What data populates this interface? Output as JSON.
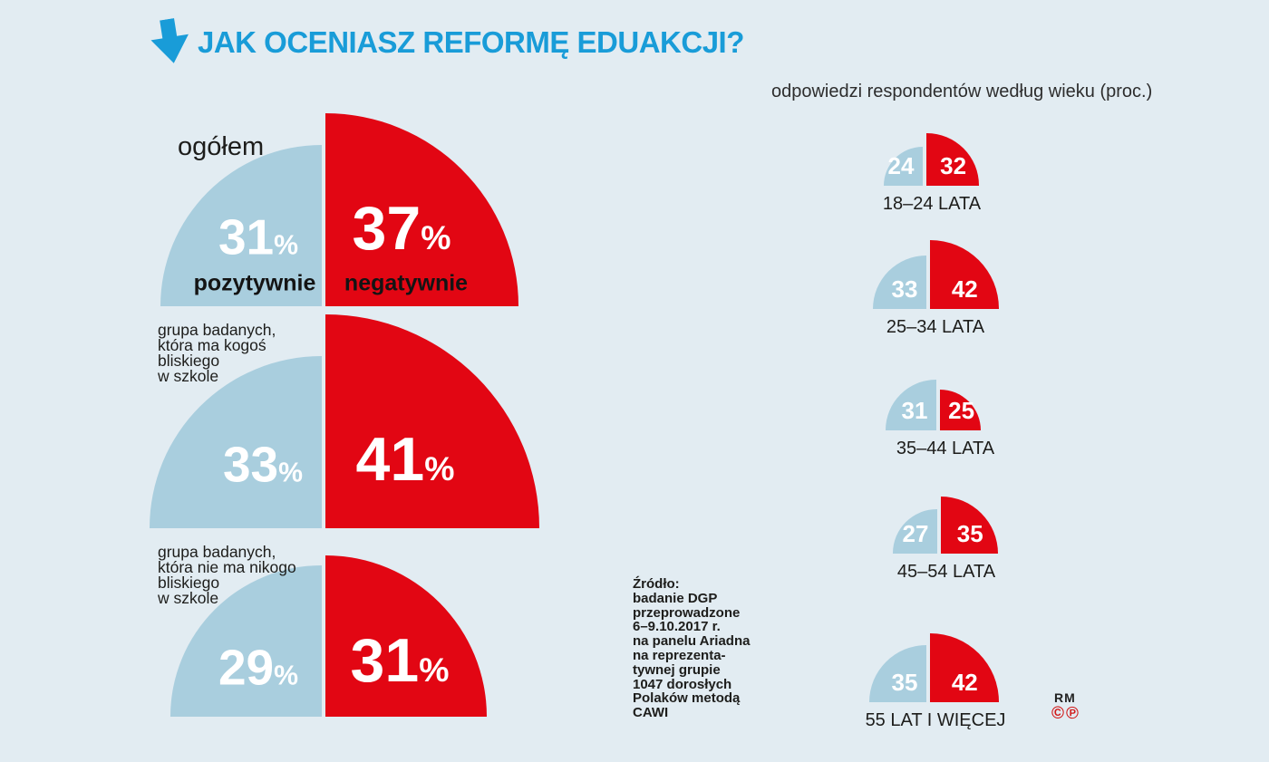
{
  "title": "JAK OCENIASZ REFORMĘ EDUAKCJI?",
  "subtitle": "odpowiedzi respondentów według wieku (proc.)",
  "legend": {
    "positive": "pozytywnie",
    "negative": "negatywnie"
  },
  "groups": [
    {
      "label_lines": [
        "ogółem"
      ],
      "positive": 31,
      "negative": 37
    },
    {
      "label_lines": [
        "grupa badanych,",
        "która ma kogoś",
        "bliskiego",
        "w szkole"
      ],
      "positive": 33,
      "negative": 41
    },
    {
      "label_lines": [
        "grupa badanych,",
        "która nie ma nikogo",
        "bliskiego",
        "w szkole"
      ],
      "positive": 29,
      "negative": 31
    }
  ],
  "ages": [
    {
      "label": "18–24 LATA",
      "positive": 24,
      "negative": 32
    },
    {
      "label": "25–34 LATA",
      "positive": 33,
      "negative": 42
    },
    {
      "label": "35–44 LATA",
      "positive": 31,
      "negative": 25
    },
    {
      "label": "45–54 LATA",
      "positive": 27,
      "negative": 35
    },
    {
      "label": "55 LAT I WIĘCEJ",
      "positive": 35,
      "negative": 42
    }
  ],
  "source_lines": [
    "Źródło:",
    "badanie DGP",
    "przeprowadzone",
    "6–9.10.2017 r.",
    "na panelu Ariadna",
    "na reprezenta-",
    "tywnej grupie",
    "1047 dorosłych",
    "Polaków metodą",
    "CAWI"
  ],
  "credits": {
    "rm": "RM",
    "symbols": "©℗"
  },
  "colors": {
    "background": "#e2ecf2",
    "positive": "#a9cede",
    "negative": "#e20613",
    "title": "#199cd8",
    "text_dark": "#1d1d1b",
    "value_text": "#ffffff",
    "credit": "#d11919"
  },
  "chart_data": [
    {
      "type": "pie",
      "title": "JAK OCENIASZ REFORMĘ EDUAKCJI?",
      "note": "quarter-circle area comparison, radius proportional to percent",
      "categories": [
        "ogółem",
        "grupa badanych, która ma kogoś bliskiego w szkole",
        "grupa badanych, która nie ma nikogo bliskiego w szkole"
      ],
      "series": [
        {
          "name": "pozytywnie",
          "values": [
            31,
            33,
            29
          ]
        },
        {
          "name": "negatywnie",
          "values": [
            37,
            41,
            31
          ]
        }
      ],
      "unit": "%",
      "legend_position": "inside-first-pair"
    },
    {
      "type": "pie",
      "title": "odpowiedzi respondentów według wieku (proc.)",
      "note": "quarter-circle area comparison per age group",
      "categories": [
        "18–24 LATA",
        "25–34 LATA",
        "35–44 LATA",
        "45–54 LATA",
        "55 LAT I WIĘCEJ"
      ],
      "series": [
        {
          "name": "pozytywnie",
          "values": [
            24,
            33,
            31,
            27,
            35
          ]
        },
        {
          "name": "negatywnie",
          "values": [
            32,
            42,
            25,
            35,
            42
          ]
        }
      ],
      "unit": "%",
      "legend_position": "none"
    }
  ]
}
